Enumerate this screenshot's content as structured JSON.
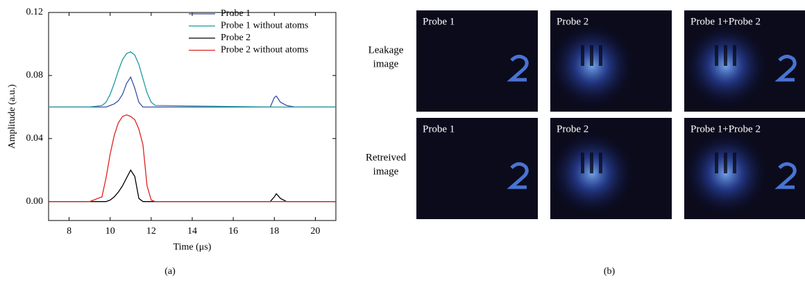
{
  "chart_data": {
    "type": "line",
    "x_label": "Time (μs)",
    "y_label": "Amplitude (a.u.)",
    "caption": "(a)",
    "x": [
      7,
      9,
      9.6,
      9.8,
      10,
      10.2,
      10.4,
      10.6,
      10.8,
      11,
      11.2,
      11.4,
      11.6,
      11.8,
      12,
      12.2,
      17.8,
      18,
      18.1,
      18.3,
      18.6,
      19,
      21
    ],
    "series": [
      {
        "name": "Probe 1",
        "color": "#3a4fa8",
        "values": [
          0.06,
          0.06,
          0.06,
          0.06,
          0.061,
          0.062,
          0.064,
          0.068,
          0.075,
          0.079,
          0.072,
          0.063,
          0.06,
          0.06,
          0.06,
          0.06,
          0.06,
          0.066,
          0.067,
          0.063,
          0.061,
          0.06,
          0.06
        ]
      },
      {
        "name": "Probe 1 without atoms",
        "color": "#1a9a9a",
        "values": [
          0.06,
          0.06,
          0.061,
          0.063,
          0.068,
          0.075,
          0.083,
          0.09,
          0.094,
          0.095,
          0.093,
          0.087,
          0.078,
          0.069,
          0.063,
          0.061,
          0.06,
          0.06,
          0.06,
          0.06,
          0.06,
          0.06,
          0.06
        ]
      },
      {
        "name": "Probe 2",
        "color": "#000000",
        "values": [
          0,
          0,
          0,
          0,
          0.001,
          0.003,
          0.006,
          0.01,
          0.015,
          0.02,
          0.016,
          0.002,
          0,
          0,
          0,
          0,
          0,
          0.003,
          0.005,
          0.002,
          0,
          0,
          0
        ]
      },
      {
        "name": "Probe 2 without atoms",
        "color": "#e02020",
        "values": [
          0,
          0,
          0.003,
          0.015,
          0.03,
          0.042,
          0.05,
          0.054,
          0.055,
          0.054,
          0.052,
          0.046,
          0.036,
          0.01,
          0.001,
          0,
          0,
          0,
          0,
          0,
          0,
          0,
          0
        ]
      }
    ],
    "xlim": [
      7,
      21
    ],
    "xticks": [
      8,
      10,
      12,
      14,
      16,
      18,
      20
    ],
    "ylim": [
      -0.012,
      0.12
    ],
    "yticks": [
      {
        "value": 0,
        "label": "0.00"
      },
      0.04,
      0.08,
      0.12
    ],
    "grid": false,
    "legend": "upper right"
  },
  "panel_b": {
    "caption": "(b)",
    "row_labels": [
      [
        "Leakage",
        "image"
      ],
      [
        "Retreived",
        "image"
      ]
    ],
    "image_titles": [
      [
        "Probe 1",
        "Probe 2",
        "Probe 1+Probe 2"
      ],
      [
        "Probe 1",
        "Probe 2",
        "Probe 1+Probe 2"
      ]
    ]
  }
}
